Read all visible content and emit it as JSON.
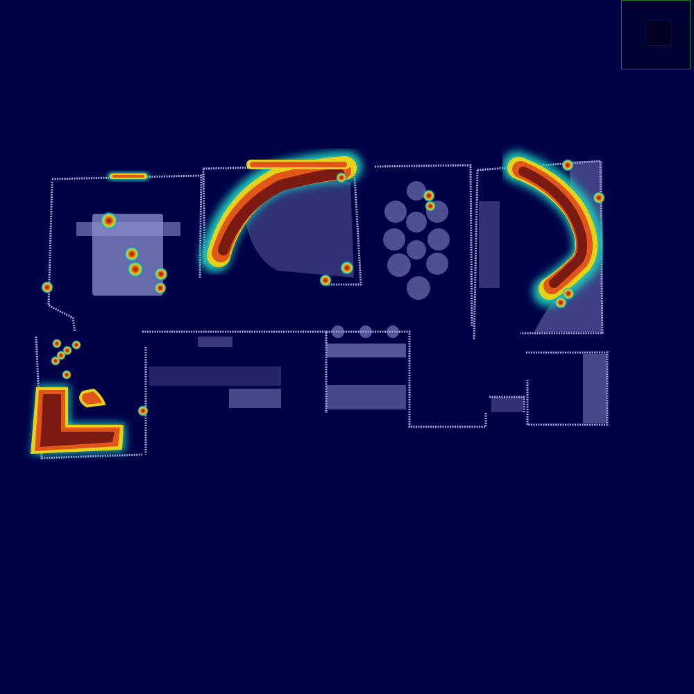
{
  "view": {
    "background_color": "#000047",
    "floorplan_color": "#8a8fcc",
    "wall_color": "#a9acd9",
    "heat_colors": {
      "low": "#1e5bd6",
      "mid": "#1fc7b8",
      "warm": "#e6d21a",
      "high": "#e2561a",
      "peak": "#7a1a10"
    }
  },
  "minimap": {
    "border_color": "#1f7a1f",
    "fill_color": "#000033"
  },
  "heatmap": {
    "clusters": [
      {
        "id": "bedroom-top-strip",
        "intensity": 0.7
      },
      {
        "id": "bedroom-bed",
        "intensity": 0.55
      },
      {
        "id": "living-sofa",
        "intensity": 1.0
      },
      {
        "id": "right-curved-sofa",
        "intensity": 1.0
      },
      {
        "id": "left-l-shaped-desk",
        "intensity": 1.0
      },
      {
        "id": "center-round-table",
        "intensity": 0.5
      }
    ]
  }
}
